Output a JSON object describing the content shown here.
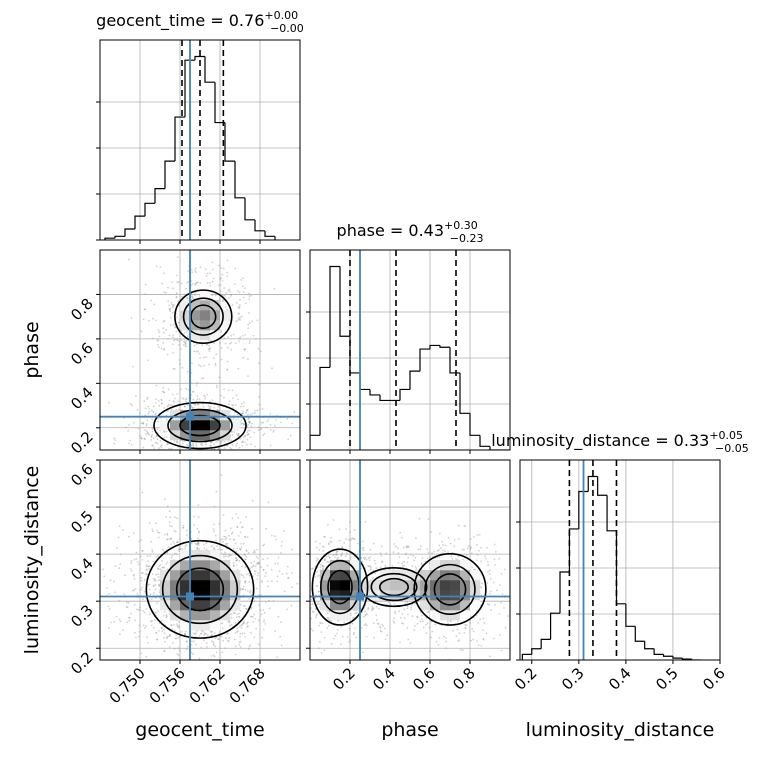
{
  "figure": {
    "type": "corner-plot",
    "parameters": [
      "geocent_time",
      "phase",
      "luminosity_distance"
    ],
    "truth_color": "#4682b4"
  },
  "chart_data": [
    {
      "type": "histogram",
      "panel": "geocent_time",
      "title": {
        "name": "geocent_time",
        "value": "0.76",
        "plus": "+0.00",
        "minus": "−0.00"
      },
      "xlim": [
        0.744,
        0.774
      ],
      "bin_centers": [
        0.7455,
        0.747,
        0.7485,
        0.75,
        0.7515,
        0.753,
        0.7545,
        0.756,
        0.7575,
        0.759,
        0.7605,
        0.762,
        0.7635,
        0.765,
        0.7665,
        0.768,
        0.7695
      ],
      "counts": [
        0.01,
        0.02,
        0.06,
        0.13,
        0.2,
        0.28,
        0.43,
        0.67,
        0.98,
        1.0,
        0.86,
        0.64,
        0.43,
        0.23,
        0.11,
        0.05,
        0.02
      ],
      "quantiles": [
        0.7563,
        0.759,
        0.7625
      ],
      "truth": 0.7575,
      "xticks": [
        0.75,
        0.756,
        0.762,
        0.768
      ],
      "xtick_labels": [
        "0.750",
        "0.756",
        "0.762",
        "0.768"
      ]
    },
    {
      "type": "histogram",
      "panel": "phase",
      "title": {
        "name": "phase",
        "value": "0.43",
        "plus": "+0.30",
        "minus": "−0.23"
      },
      "xlim": [
        0.0,
        1.0
      ],
      "bin_centers": [
        0.025,
        0.075,
        0.125,
        0.175,
        0.225,
        0.275,
        0.325,
        0.375,
        0.425,
        0.475,
        0.525,
        0.575,
        0.625,
        0.675,
        0.725,
        0.775,
        0.825,
        0.875,
        0.925,
        0.975
      ],
      "counts": [
        0.08,
        0.45,
        1.0,
        0.62,
        0.42,
        0.33,
        0.3,
        0.27,
        0.27,
        0.33,
        0.43,
        0.55,
        0.57,
        0.56,
        0.42,
        0.2,
        0.08,
        0.02,
        0.0,
        0.0
      ],
      "quantiles": [
        0.2,
        0.43,
        0.73
      ],
      "truth": 0.25,
      "xticks": [
        0.2,
        0.4,
        0.6,
        0.8
      ],
      "xtick_labels": [
        "0.2",
        "0.4",
        "0.6",
        "0.8"
      ]
    },
    {
      "type": "histogram",
      "panel": "luminosity_distance",
      "title": {
        "name": "luminosity_distance",
        "value": "0.33",
        "plus": "+0.05",
        "minus": "−0.05"
      },
      "xlim": [
        0.175,
        0.6
      ],
      "bin_centers": [
        0.19,
        0.21,
        0.23,
        0.25,
        0.27,
        0.29,
        0.31,
        0.33,
        0.35,
        0.37,
        0.39,
        0.41,
        0.43,
        0.45,
        0.47,
        0.49,
        0.51,
        0.53,
        0.55
      ],
      "counts": [
        0.03,
        0.06,
        0.11,
        0.25,
        0.47,
        0.7,
        0.9,
        0.98,
        0.88,
        0.69,
        0.3,
        0.18,
        0.1,
        0.06,
        0.03,
        0.02,
        0.01,
        0.005,
        0.0
      ],
      "quantiles": [
        0.28,
        0.33,
        0.38
      ],
      "truth": 0.31,
      "xticks": [
        0.2,
        0.3,
        0.4,
        0.5,
        0.6
      ],
      "xtick_labels": [
        "0.2",
        "0.3",
        "0.4",
        "0.5",
        "0.6"
      ]
    },
    {
      "type": "contour-2d",
      "panel": "phase vs geocent_time",
      "x": "geocent_time",
      "y": "phase",
      "xlim": [
        0.744,
        0.774
      ],
      "ylim": [
        0.1,
        1.0
      ],
      "truth": [
        0.7575,
        0.25
      ],
      "modes": [
        {
          "center": [
            0.759,
            0.21
          ],
          "sigma": [
            0.003,
            0.045
          ],
          "weight": 1.0
        },
        {
          "center": [
            0.7595,
            0.7
          ],
          "sigma": [
            0.0025,
            0.07
          ],
          "weight": 0.55
        }
      ],
      "yticks": [
        0.2,
        0.4,
        0.6,
        0.8
      ],
      "ytick_labels": [
        "0.2",
        "0.4",
        "0.6",
        "0.8"
      ]
    },
    {
      "type": "contour-2d",
      "panel": "luminosity_distance vs geocent_time",
      "x": "geocent_time",
      "y": "luminosity_distance",
      "xlim": [
        0.744,
        0.774
      ],
      "ylim": [
        0.175,
        0.6
      ],
      "truth": [
        0.7575,
        0.31
      ],
      "modes": [
        {
          "center": [
            0.759,
            0.325
          ],
          "sigma": [
            0.0035,
            0.045
          ],
          "weight": 1.0
        }
      ],
      "yticks": [
        0.2,
        0.3,
        0.4,
        0.5,
        0.6
      ],
      "ytick_labels": [
        "0.2",
        "0.3",
        "0.4",
        "0.5",
        "0.6"
      ]
    },
    {
      "type": "contour-2d",
      "panel": "luminosity_distance vs phase",
      "x": "phase",
      "y": "luminosity_distance",
      "xlim": [
        0.0,
        1.0
      ],
      "ylim": [
        0.175,
        0.6
      ],
      "truth": [
        0.25,
        0.31
      ],
      "modes": [
        {
          "center": [
            0.15,
            0.33
          ],
          "sigma": [
            0.06,
            0.035
          ],
          "weight": 1.0
        },
        {
          "center": [
            0.7,
            0.325
          ],
          "sigma": [
            0.09,
            0.038
          ],
          "weight": 0.75
        },
        {
          "center": [
            0.42,
            0.33
          ],
          "sigma": [
            0.12,
            0.03
          ],
          "weight": 0.35
        }
      ]
    }
  ],
  "axis_labels": {
    "x": [
      "geocent_time",
      "phase",
      "luminosity_distance"
    ],
    "y": [
      "phase",
      "luminosity_distance"
    ]
  }
}
